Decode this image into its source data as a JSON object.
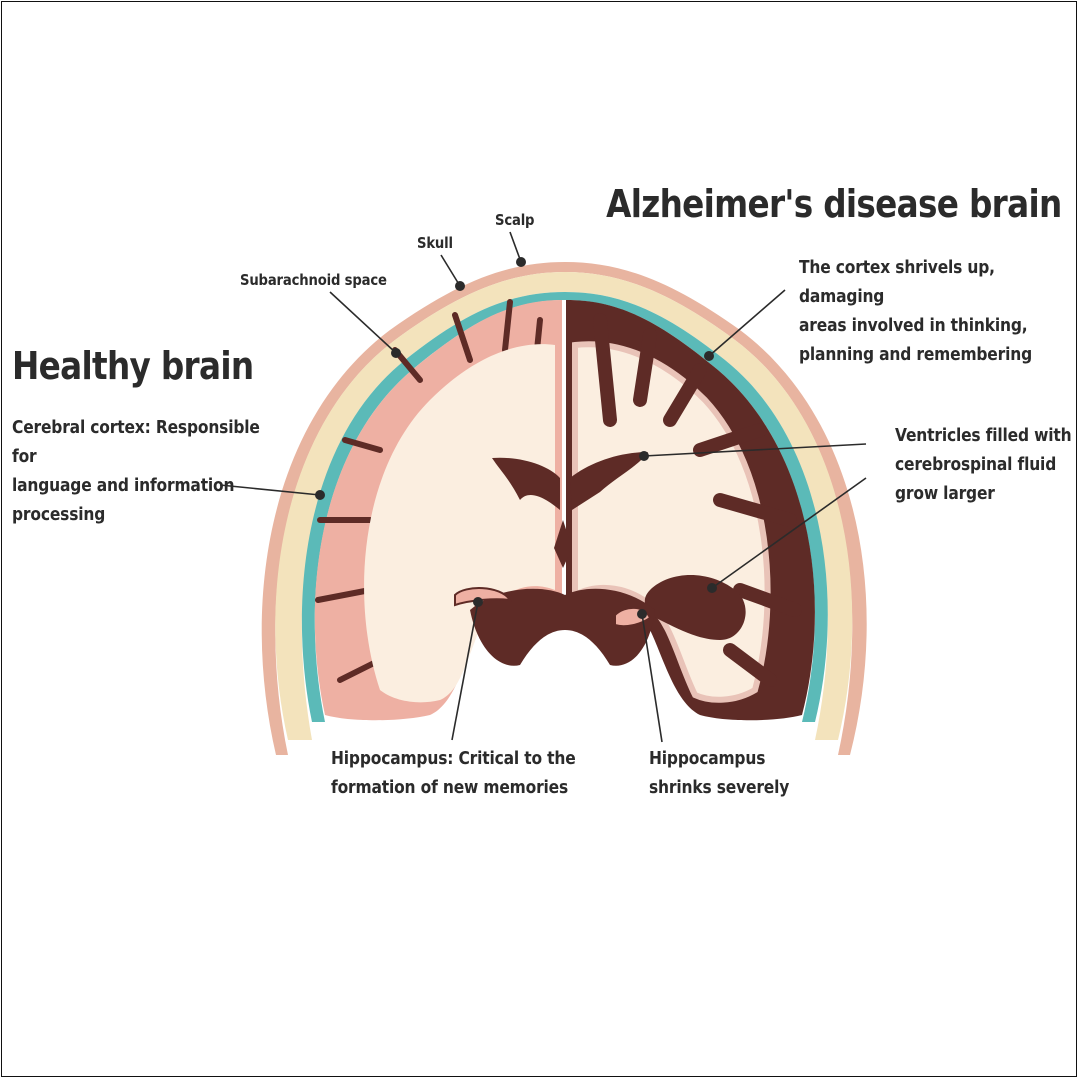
{
  "left_title": "Healthy brain",
  "right_title": "Alzheimer's disease brain",
  "labels": {
    "scalp": "Scalp",
    "skull": "Skull",
    "subarachnoid": "Subarachnoid space",
    "cortex_healthy": [
      "Cerebral cortex: Responsible for",
      "language and information",
      "processing"
    ],
    "cortex_ad": [
      "The cortex shrivels up, damaging",
      "areas involved in thinking,",
      "planning  and remembering"
    ],
    "ventricles": [
      "Ventricles filled with",
      "cerebrospinal fluid",
      "grow larger"
    ],
    "hippo_healthy": [
      "Hippocampus: Critical to the",
      "formation of new memories"
    ],
    "hippo_ad": [
      "Hippocampus",
      "shrinks severely"
    ]
  },
  "colors": {
    "scalp": "#e8b4a0",
    "skull": "#f3e3bc",
    "subarachnoid": "#5bbab8",
    "healthy_cortex": "#eeb0a3",
    "white_matter": "#fbeee0",
    "ad_dark": "#5e2b26",
    "leader": "#2b2b2b"
  }
}
